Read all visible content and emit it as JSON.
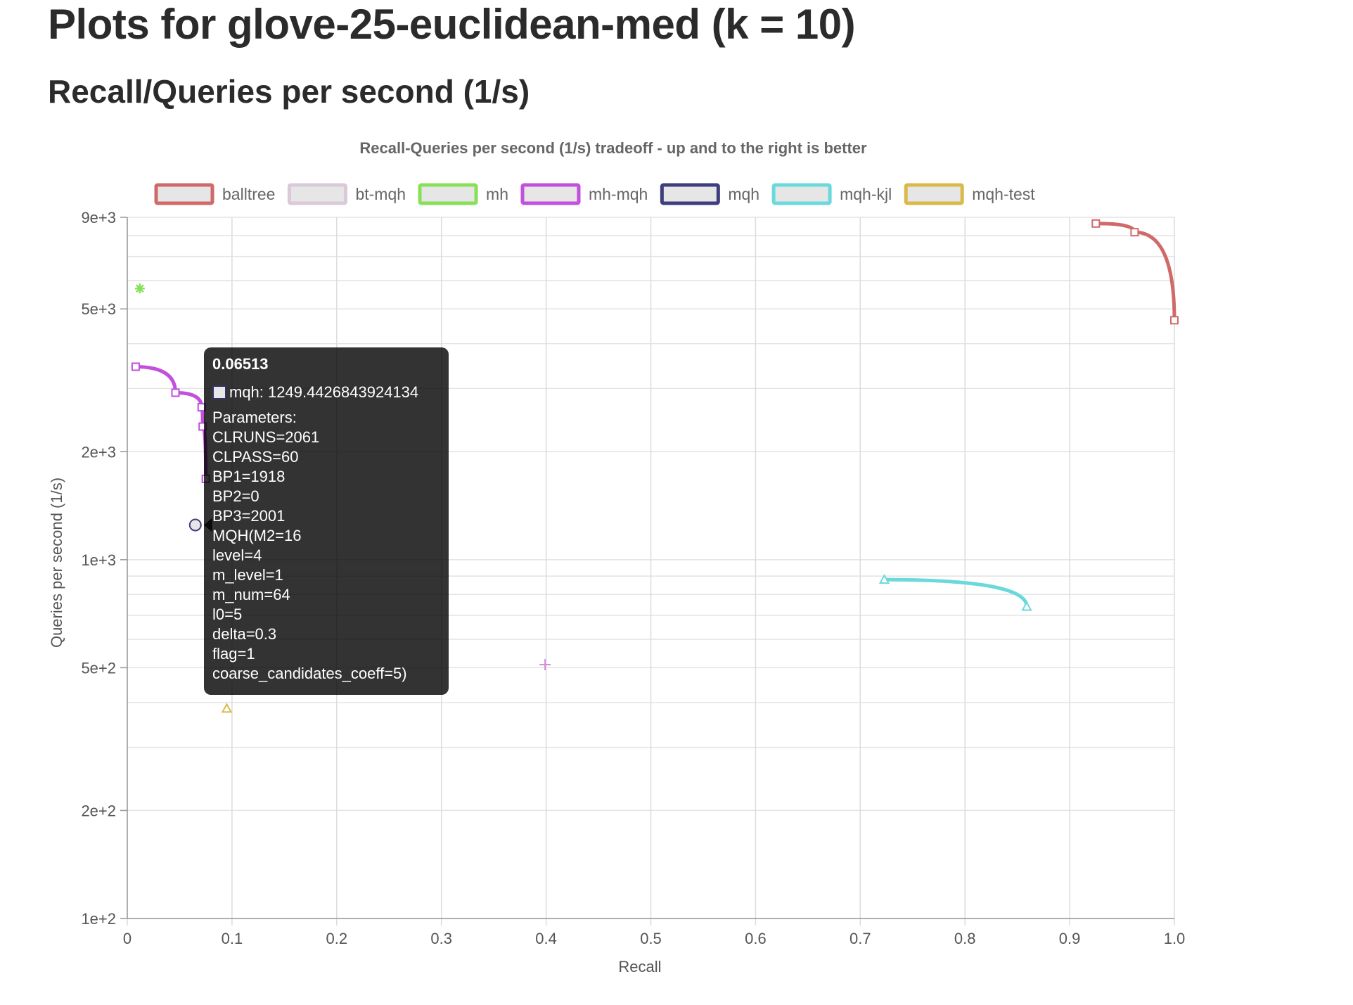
{
  "page": {
    "heading": "Plots for glove-25-euclidean-med (k = 10)",
    "subheading": "Recall/Queries per second (1/s)"
  },
  "chart_data": {
    "type": "line",
    "title": "Recall-Queries per second (1/s) tradeoff - up and to the right is better",
    "xlabel": "Recall",
    "ylabel": "Queries per second (1/s)",
    "xlim": [
      0,
      1.0
    ],
    "ylim": [
      100,
      9000
    ],
    "yscale": "log",
    "grid": true,
    "legend_position": "top",
    "x_ticks": [
      "0",
      "0.1",
      "0.2",
      "0.3",
      "0.4",
      "0.5",
      "0.6",
      "0.7",
      "0.8",
      "0.9",
      "1.0"
    ],
    "y_ticks": [
      {
        "value": 9000,
        "label": "9e+3"
      },
      {
        "value": 5000,
        "label": "5e+3"
      },
      {
        "value": 2000,
        "label": "2e+3"
      },
      {
        "value": 1000,
        "label": "1e+3"
      },
      {
        "value": 500,
        "label": "5e+2"
      },
      {
        "value": 200,
        "label": "2e+2"
      },
      {
        "value": 100,
        "label": "1e+2"
      }
    ],
    "series": [
      {
        "name": "balltree",
        "color": "#d06a6a",
        "marker": "rect",
        "line": true,
        "points": [
          [
            0.925,
            8650
          ],
          [
            0.962,
            8180
          ],
          [
            1.0,
            4650
          ]
        ]
      },
      {
        "name": "bt-mqh",
        "color": "#d9c9d9",
        "marker": "rect",
        "line": false,
        "points": []
      },
      {
        "name": "mh",
        "color": "#88e05a",
        "marker": "star",
        "line": false,
        "points": [
          [
            0.012,
            5700
          ]
        ]
      },
      {
        "name": "mh-mqh",
        "color": "#c250dc",
        "marker": "rect",
        "line": true,
        "points": [
          [
            0.008,
            3450
          ],
          [
            0.046,
            2920
          ],
          [
            0.071,
            2660
          ],
          [
            0.072,
            2350
          ],
          [
            0.075,
            1680
          ]
        ]
      },
      {
        "name": "mqh",
        "color": "#3e3e7e",
        "marker": "circle",
        "line": false,
        "points": [
          [
            0.065,
            1249.44
          ]
        ]
      },
      {
        "name": "mqh-kjl",
        "color": "#6ad9dc",
        "marker": "triangle",
        "line": true,
        "points": [
          [
            0.723,
            880
          ],
          [
            0.859,
            740
          ]
        ]
      },
      {
        "name": "mqh-test",
        "color": "#d9b94a",
        "marker": "triangle",
        "line": false,
        "points": [
          [
            0.095,
            385
          ]
        ]
      },
      {
        "name": "",
        "color": "#d98ad9",
        "marker": "cross",
        "line": false,
        "points": [
          [
            0.399,
            510
          ]
        ]
      }
    ],
    "tooltip": {
      "title": "0.06513",
      "series_line": "mqh: 1249.4426843924134",
      "lines": [
        "Parameters:",
        "CLRUNS=2061",
        "CLPASS=60",
        "BP1=1918",
        "BP2=0",
        "BP3=2001",
        "MQH(M2=16",
        "level=4",
        "m_level=1",
        "m_num=64",
        "l0=5",
        "delta=0.3",
        "flag=1",
        "coarse_candidates_coeff=5)"
      ]
    }
  }
}
